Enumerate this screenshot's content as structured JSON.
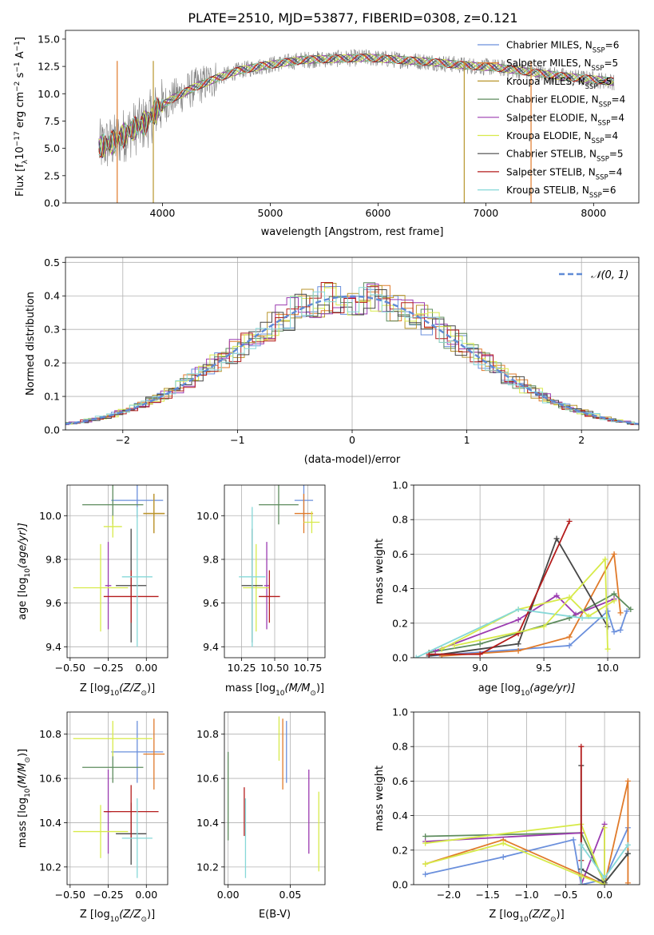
{
  "colors": {
    "CM": "#6a8fdc",
    "SM": "#e07a2a",
    "KM": "#b8962d",
    "CE": "#5e8c5e",
    "SE": "#9b3bb0",
    "KE": "#d7ea4a",
    "CS": "#474747",
    "SS": "#b41c1c",
    "KS": "#86d8d8",
    "data": "#7f7f7f",
    "normal_curve": "#5f8ad6"
  },
  "series_labels": {
    "CM": "Chabrier MILES, N",
    "SM": "Salpeter MILES, N",
    "KM": "Kroupa MILES, N",
    "CE": "Chabrier ELODIE, N",
    "SE": "Salpeter ELODIE, N",
    "KE": "Kroupa ELODIE, N",
    "CS": "Chabrier STELIB, N",
    "SS": "Salpeter STELIB, N",
    "KS": "Kroupa STELIB, N"
  },
  "legend_sub": "SSP",
  "chart_data": [
    {
      "type": "line",
      "title": "PLATE=2510, MJD=53877, FIBERID=0308, z=0.121",
      "xlabel": "wavelength [Angstrom, rest frame]",
      "ylabel_parts": {
        "a": "Flux [f",
        "b": "λ",
        "c": "10",
        "d": "−17",
        "e": " erg cm",
        "f": "−2",
        "g": " s",
        "h": "−1",
        "i": " A",
        "j": "−1",
        "k": "]"
      },
      "xlim": [
        3100,
        8420
      ],
      "ylim": [
        0,
        15.8
      ],
      "xticks": [
        4000,
        5000,
        6000,
        7000,
        8000
      ],
      "yticks": [
        0.0,
        2.5,
        5.0,
        7.5,
        10.0,
        12.5,
        15.0
      ],
      "continuum": [
        [
          3410,
          5.1
        ],
        [
          3550,
          5.6
        ],
        [
          3700,
          6.6
        ],
        [
          3850,
          7.4
        ],
        [
          3950,
          8.6
        ],
        [
          4100,
          9.6
        ],
        [
          4300,
          10.6
        ],
        [
          4500,
          11.4
        ],
        [
          4700,
          12.1
        ],
        [
          4900,
          12.5
        ],
        [
          5100,
          12.8
        ],
        [
          5300,
          13.1
        ],
        [
          5600,
          13.2
        ],
        [
          5900,
          13.3
        ],
        [
          6200,
          13.1
        ],
        [
          6500,
          12.9
        ],
        [
          6800,
          12.6
        ],
        [
          7100,
          12.4
        ],
        [
          7400,
          12.0
        ],
        [
          7700,
          11.6
        ],
        [
          8000,
          11.3
        ],
        [
          8190,
          11.1
        ]
      ],
      "series": [
        {
          "key": "CM",
          "nssp": "6"
        },
        {
          "key": "SM",
          "nssp": "5"
        },
        {
          "key": "KM",
          "nssp": "5"
        },
        {
          "key": "CE",
          "nssp": "4"
        },
        {
          "key": "SE",
          "nssp": "4"
        },
        {
          "key": "KE",
          "nssp": "4"
        },
        {
          "key": "CS",
          "nssp": "5"
        },
        {
          "key": "SS",
          "nssp": "4"
        },
        {
          "key": "KS",
          "nssp": "6"
        }
      ]
    },
    {
      "type": "histogram",
      "xlabel": "(data-model)/error",
      "ylabel": "Normed distribution",
      "xlim": [
        -2.5,
        2.5
      ],
      "ylim": [
        0,
        0.515
      ],
      "xticks": [
        -2,
        -1,
        0,
        1,
        2
      ],
      "yticks": [
        0.0,
        0.1,
        0.2,
        0.3,
        0.4,
        0.5
      ],
      "bin_width": 0.1,
      "legend": "𝒩(0, 1)",
      "normal": {
        "mean": 0,
        "sigma": 1
      }
    },
    {
      "type": "errorbar",
      "xlabel_parts": {
        "a": "Z [log",
        "b": "10",
        "c": "(Z/Z",
        "d": "⊙",
        "e": ")]"
      },
      "ylabel_parts": {
        "a": "age  [log",
        "b": "10",
        "c": "(age/yr)]"
      },
      "xlim": [
        -0.52,
        0.14
      ],
      "ylim": [
        9.35,
        10.14
      ],
      "xticks": [
        -0.5,
        -0.25,
        0.0
      ],
      "yticks": [
        9.4,
        9.6,
        9.8,
        10.0
      ],
      "points": [
        {
          "key": "CM",
          "x": -0.06,
          "xe": 0.17,
          "y": 10.07,
          "ye": 0.08
        },
        {
          "key": "SM",
          "x": 0.05,
          "xe": 0.07,
          "y": 10.01,
          "ye": 0.09
        },
        {
          "key": "KM",
          "x": 0.05,
          "xe": 0.07,
          "y": 10.01,
          "ye": 0.09
        },
        {
          "key": "CE",
          "x": -0.22,
          "xe": 0.2,
          "y": 10.05,
          "ye": 0.09
        },
        {
          "key": "SE",
          "x": -0.25,
          "xe": 0.02,
          "y": 9.68,
          "ye": 0.2
        },
        {
          "key": "KE",
          "x": -0.3,
          "xe": 0.18,
          "y": 9.67,
          "ye": 0.2
        },
        {
          "key": "CS",
          "x": -0.1,
          "xe": 0.1,
          "y": 9.68,
          "ye": 0.26
        },
        {
          "key": "SS",
          "x": -0.1,
          "xe": 0.18,
          "y": 9.63,
          "ye": 0.12
        },
        {
          "key": "KS",
          "x": -0.06,
          "xe": 0.1,
          "y": 9.72,
          "ye": 0.32
        },
        {
          "key": "KE",
          "x": -0.22,
          "xe": 0.06,
          "y": 9.95,
          "ye": 0.05
        }
      ]
    },
    {
      "type": "errorbar",
      "xlabel_parts": {
        "a": "mass [log",
        "b": "10",
        "c": "(M/M",
        "d": "⊙",
        "e": ")]"
      },
      "xlim": [
        10.12,
        10.88
      ],
      "ylim": [
        9.35,
        10.14
      ],
      "xticks": [
        10.25,
        10.5,
        10.75
      ],
      "yticks": [
        9.4,
        9.6,
        9.8,
        10.0
      ],
      "points": [
        {
          "key": "CM",
          "x": 10.72,
          "xe": 0.07,
          "y": 10.07,
          "ye": 0.08
        },
        {
          "key": "SM",
          "x": 10.72,
          "xe": 0.07,
          "y": 10.01,
          "ye": 0.09
        },
        {
          "key": "CE",
          "x": 10.53,
          "xe": 0.15,
          "y": 10.05,
          "ye": 0.09
        },
        {
          "key": "SE",
          "x": 10.44,
          "xe": 0.02,
          "y": 9.68,
          "ye": 0.2
        },
        {
          "key": "KE",
          "x": 10.36,
          "xe": 0.1,
          "y": 9.67,
          "ye": 0.2
        },
        {
          "key": "CS",
          "x": 10.33,
          "xe": 0.08,
          "y": 9.68,
          "ye": 0.26
        },
        {
          "key": "SS",
          "x": 10.46,
          "xe": 0.08,
          "y": 9.63,
          "ye": 0.12
        },
        {
          "key": "KS",
          "x": 10.33,
          "xe": 0.1,
          "y": 9.72,
          "ye": 0.32
        },
        {
          "key": "KE",
          "x": 10.78,
          "xe": 0.06,
          "y": 9.97,
          "ye": 0.05
        }
      ]
    },
    {
      "type": "line",
      "xlabel_parts": {
        "a": "age  [log",
        "b": "10",
        "c": "(age/yr)]"
      },
      "ylabel": "mass weight",
      "xlim": [
        8.48,
        10.25
      ],
      "ylim": [
        0,
        1.0
      ],
      "xticks": [
        9.0,
        9.5,
        10.0
      ],
      "yticks": [
        0.0,
        0.2,
        0.4,
        0.6,
        0.8,
        1.0
      ],
      "series": [
        {
          "key": "CM",
          "x": [
            8.6,
            9.7,
            10.0,
            10.05,
            10.1,
            10.15
          ],
          "y": [
            0.01,
            0.07,
            0.27,
            0.15,
            0.16,
            0.27
          ]
        },
        {
          "key": "SM",
          "x": [
            8.7,
            9.3,
            9.7,
            10.05,
            10.1
          ],
          "y": [
            0.01,
            0.04,
            0.12,
            0.6,
            0.26
          ]
        },
        {
          "key": "CE",
          "x": [
            8.6,
            9.0,
            9.7,
            10.05,
            10.18
          ],
          "y": [
            0.03,
            0.08,
            0.23,
            0.37,
            0.28
          ]
        },
        {
          "key": "SE",
          "x": [
            8.65,
            9.3,
            9.6,
            9.75,
            10.05
          ],
          "y": [
            0.04,
            0.22,
            0.36,
            0.25,
            0.34
          ]
        },
        {
          "key": "KE",
          "x": [
            8.7,
            9.3,
            9.7,
            9.85,
            10.05
          ],
          "y": [
            0.05,
            0.28,
            0.35,
            0.24,
            0.33
          ]
        },
        {
          "key": "CS",
          "x": [
            8.6,
            9.3,
            9.6,
            10.0
          ],
          "y": [
            0.01,
            0.08,
            0.69,
            0.18
          ]
        },
        {
          "key": "SS",
          "x": [
            8.6,
            9.0,
            9.3,
            9.7
          ],
          "y": [
            0.02,
            0.02,
            0.14,
            0.79
          ]
        },
        {
          "key": "KS",
          "x": [
            8.5,
            9.3,
            9.8,
            10.0
          ],
          "y": [
            0.0,
            0.28,
            0.23,
            0.23
          ]
        },
        {
          "key": "KE",
          "x": [
            8.8,
            9.5,
            9.98,
            10.0
          ],
          "y": [
            0.07,
            0.18,
            0.57,
            0.05
          ]
        }
      ]
    },
    {
      "type": "errorbar",
      "xlabel_parts": {
        "a": "Z [log",
        "b": "10",
        "c": "(Z/Z",
        "d": "⊙",
        "e": ")]"
      },
      "ylabel_parts": {
        "a": "mass [log",
        "b": "10",
        "c": "(M/M",
        "d": "⊙",
        "e": ")]"
      },
      "xlim": [
        -0.52,
        0.14
      ],
      "ylim": [
        10.12,
        10.9
      ],
      "xticks": [
        -0.5,
        -0.25,
        0.0
      ],
      "yticks": [
        10.2,
        10.4,
        10.6,
        10.8
      ],
      "points": [
        {
          "key": "CM",
          "x": -0.06,
          "xe": 0.17,
          "y": 10.72,
          "ye": 0.14
        },
        {
          "key": "SM",
          "x": 0.05,
          "xe": 0.07,
          "y": 10.71,
          "ye": 0.16
        },
        {
          "key": "CE",
          "x": -0.22,
          "xe": 0.2,
          "y": 10.65,
          "ye": 0.07
        },
        {
          "key": "SE",
          "x": -0.25,
          "xe": 0.02,
          "y": 10.45,
          "ye": 0.19
        },
        {
          "key": "KE",
          "x": -0.3,
          "xe": 0.18,
          "y": 10.36,
          "ye": 0.12
        },
        {
          "key": "CS",
          "x": -0.1,
          "xe": 0.1,
          "y": 10.35,
          "ye": 0.14
        },
        {
          "key": "SS",
          "x": -0.1,
          "xe": 0.18,
          "y": 10.45,
          "ye": 0.12
        },
        {
          "key": "KS",
          "x": -0.06,
          "xe": 0.1,
          "y": 10.33,
          "ye": 0.18
        },
        {
          "key": "KE",
          "x": -0.22,
          "xe": 0.26,
          "y": 10.78,
          "ye": 0.08
        }
      ]
    },
    {
      "type": "errorbar",
      "xlabel": "E(B-V)",
      "xlim": [
        -0.003,
        0.078
      ],
      "ylim": [
        10.12,
        10.9
      ],
      "xticks": [
        0.0,
        0.05
      ],
      "yticks": [
        10.2,
        10.4,
        10.6,
        10.8
      ],
      "points": [
        {
          "key": "CE",
          "x": 0.0,
          "xe": 0.0,
          "y": 10.52,
          "ye": 0.2
        },
        {
          "key": "SS",
          "x": 0.013,
          "xe": 0.0,
          "y": 10.45,
          "ye": 0.11
        },
        {
          "key": "KS",
          "x": 0.014,
          "xe": 0.0,
          "y": 10.33,
          "ye": 0.18
        },
        {
          "key": "KE",
          "x": 0.041,
          "xe": 0.0,
          "y": 10.78,
          "ye": 0.1
        },
        {
          "key": "SM",
          "x": 0.044,
          "xe": 0.0,
          "y": 10.71,
          "ye": 0.16
        },
        {
          "key": "CM",
          "x": 0.047,
          "xe": 0.0,
          "y": 10.72,
          "ye": 0.14
        },
        {
          "key": "SE",
          "x": 0.065,
          "xe": 0.0,
          "y": 10.45,
          "ye": 0.19
        },
        {
          "key": "KE",
          "x": 0.073,
          "xe": 0.0,
          "y": 10.36,
          "ye": 0.18
        }
      ]
    },
    {
      "type": "line",
      "xlabel_parts": {
        "a": "Z [log",
        "b": "10",
        "c": "(Z/Z",
        "d": "⊙",
        "e": ")]"
      },
      "ylabel": "mass weight",
      "xlim": [
        -2.45,
        0.45
      ],
      "ylim": [
        0,
        1.0
      ],
      "xticks": [
        -2.0,
        -1.5,
        -1.0,
        -0.5,
        0.0
      ],
      "yticks": [
        0.0,
        0.2,
        0.4,
        0.6,
        0.8,
        1.0
      ],
      "series": [
        {
          "key": "CM",
          "x": [
            -2.3,
            -1.3,
            -0.4,
            -0.3,
            0.0,
            0.3
          ],
          "y": [
            0.06,
            0.16,
            0.26,
            0.0,
            0.03,
            0.33
          ]
        },
        {
          "key": "SM",
          "x": [
            -2.3,
            -1.3,
            0.0,
            0.3,
            0.3
          ],
          "y": [
            0.12,
            0.26,
            0.0,
            0.6,
            0.01
          ]
        },
        {
          "key": "CE",
          "x": [
            -2.3,
            -0.3,
            0.0,
            0.3
          ],
          "y": [
            0.28,
            0.3,
            0.01,
            0.18
          ]
        },
        {
          "key": "SE",
          "x": [
            -2.3,
            -0.3,
            -0.3,
            0.0,
            0.0
          ],
          "y": [
            0.25,
            0.3,
            0.0,
            0.35,
            0.0
          ]
        },
        {
          "key": "KE",
          "x": [
            -2.3,
            -0.3,
            0.0,
            0.0
          ],
          "y": [
            0.24,
            0.35,
            0.0,
            0.33
          ]
        },
        {
          "key": "CS",
          "x": [
            -0.3,
            -0.3,
            0.0,
            0.3
          ],
          "y": [
            0.69,
            0.09,
            0.01,
            0.18
          ]
        },
        {
          "key": "SS",
          "x": [
            -0.3,
            -0.3,
            -0.3
          ],
          "y": [
            0.8,
            0.14,
            0.0
          ]
        },
        {
          "key": "KS",
          "x": [
            -0.3,
            -0.3,
            0.0,
            0.3
          ],
          "y": [
            0.0,
            0.23,
            0.04,
            0.23
          ]
        },
        {
          "key": "KE",
          "x": [
            -2.3,
            -1.3,
            -0.3,
            0.0
          ],
          "y": [
            0.12,
            0.24,
            0.05,
            0.0
          ]
        }
      ]
    }
  ]
}
